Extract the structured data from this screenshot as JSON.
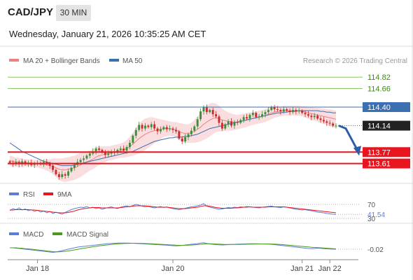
{
  "header": {
    "symbol": "CAD/JPY",
    "timeframe": "30 MIN",
    "timestamp": "Wednesday, January 21, 2026 10:35:25 AM CET"
  },
  "colors": {
    "candle_up": "#3a8f3a",
    "candle_down": "#cc2a2a",
    "bollinger_fill": "#f9d4d6",
    "ma20": "#f08080",
    "ma50": "#3a6fb0",
    "resistance_green": "#8ec86a",
    "pivot_blue": "#3a6fb0",
    "support_red": "#e8141e",
    "last_price_box": "#222222",
    "arrow": "#2a5ea8",
    "rsi": "#5b7fd8",
    "rsi_ma": "#e8141e",
    "macd": "#5b7fd8",
    "macd_signal": "#4a9a1e"
  },
  "chart_data": [
    {
      "type": "candlestick",
      "legend": [
        {
          "name": "MA 20 + Bollinger Bands",
          "color": "#f08080"
        },
        {
          "name": "MA 50",
          "color": "#3a6fb0"
        }
      ],
      "legend_placement": "top-left",
      "credit": "Research © 2026 Trading Central",
      "ylim": [
        113.4,
        114.92
      ],
      "x_ticks": [
        "Jan 18",
        "Jan 20",
        "Jan 21",
        "Jan 22"
      ],
      "last_price": 114.14,
      "levels": [
        {
          "value": 114.82,
          "label": "114.82",
          "kind": "resistance"
        },
        {
          "value": 114.66,
          "label": "114.66",
          "kind": "resistance"
        },
        {
          "value": 114.4,
          "label": "114.40",
          "kind": "pivot"
        },
        {
          "value": 113.77,
          "label": "113.77",
          "kind": "support"
        },
        {
          "value": 113.61,
          "label": "113.61",
          "kind": "support"
        }
      ],
      "close": [
        113.62,
        113.6,
        113.63,
        113.6,
        113.64,
        113.6,
        113.62,
        113.59,
        113.61,
        113.62,
        113.6,
        113.63,
        113.61,
        113.58,
        113.52,
        113.46,
        113.42,
        113.46,
        113.44,
        113.5,
        113.55,
        113.59,
        113.63,
        113.66,
        113.68,
        113.72,
        113.75,
        113.78,
        113.82,
        113.8,
        113.77,
        113.73,
        113.75,
        113.78,
        113.76,
        113.8,
        113.82,
        113.79,
        113.84,
        113.9,
        114.0,
        114.08,
        114.15,
        114.1,
        114.14,
        114.12,
        114.16,
        114.1,
        114.06,
        114.09,
        114.12,
        114.09,
        114.1,
        114.08,
        114.06,
        113.96,
        113.92,
        113.98,
        114.02,
        114.07,
        114.13,
        114.23,
        114.34,
        114.4,
        114.33,
        114.36,
        114.3,
        114.27,
        114.18,
        114.1,
        114.16,
        114.2,
        114.14,
        114.19,
        114.18,
        114.22,
        114.26,
        114.24,
        114.29,
        114.32,
        114.26,
        114.27,
        114.3,
        114.33,
        114.36,
        114.4,
        114.37,
        114.36,
        114.34,
        114.37,
        114.35,
        114.33,
        114.36,
        114.34,
        114.35,
        114.32,
        114.3,
        114.28,
        114.26,
        114.28,
        114.24,
        114.22,
        114.2,
        114.18,
        114.17,
        114.14,
        114.14
      ],
      "ma20": [
        113.65,
        113.64,
        113.63,
        113.63,
        113.62,
        113.62,
        113.62,
        113.62,
        113.61,
        113.61,
        113.6,
        113.6,
        113.59,
        113.58,
        113.57,
        113.55,
        113.53,
        113.52,
        113.52,
        113.53,
        113.54,
        113.55,
        113.57,
        113.59,
        113.61,
        113.63,
        113.65,
        113.67,
        113.7,
        113.72,
        113.73,
        113.74,
        113.75,
        113.76,
        113.77,
        113.78,
        113.79,
        113.8,
        113.82,
        113.85,
        113.88,
        113.92,
        113.96,
        113.99,
        114.02,
        114.04,
        114.06,
        114.07,
        114.08,
        114.09,
        114.1,
        114.1,
        114.1,
        114.09,
        114.08,
        114.06,
        114.04,
        114.03,
        114.03,
        114.04,
        114.06,
        114.09,
        114.12,
        114.16,
        114.19,
        114.22,
        114.24,
        114.25,
        114.24,
        114.22,
        114.21,
        114.2,
        114.19,
        114.19,
        114.19,
        114.2,
        114.21,
        114.22,
        114.23,
        114.24,
        114.25,
        114.26,
        114.27,
        114.28,
        114.3,
        114.32,
        114.33,
        114.34,
        114.34,
        114.35,
        114.35,
        114.35,
        114.35,
        114.35,
        114.35,
        114.34,
        114.33,
        114.32,
        114.31,
        114.3,
        114.29,
        114.28,
        114.27,
        114.26,
        114.25,
        114.24,
        114.23
      ],
      "bb_width": [
        0.07,
        0.07,
        0.06,
        0.06,
        0.06,
        0.05,
        0.05,
        0.05,
        0.05,
        0.05,
        0.06,
        0.07,
        0.08,
        0.09,
        0.11,
        0.13,
        0.15,
        0.16,
        0.17,
        0.17,
        0.17,
        0.17,
        0.17,
        0.17,
        0.16,
        0.15,
        0.14,
        0.14,
        0.14,
        0.13,
        0.12,
        0.11,
        0.1,
        0.1,
        0.1,
        0.1,
        0.1,
        0.11,
        0.12,
        0.14,
        0.16,
        0.19,
        0.21,
        0.22,
        0.22,
        0.21,
        0.2,
        0.18,
        0.16,
        0.14,
        0.12,
        0.11,
        0.1,
        0.1,
        0.11,
        0.12,
        0.13,
        0.13,
        0.13,
        0.14,
        0.16,
        0.18,
        0.2,
        0.22,
        0.23,
        0.23,
        0.22,
        0.2,
        0.18,
        0.16,
        0.14,
        0.13,
        0.12,
        0.11,
        0.1,
        0.1,
        0.1,
        0.1,
        0.09,
        0.09,
        0.09,
        0.09,
        0.09,
        0.09,
        0.09,
        0.09,
        0.08,
        0.08,
        0.07,
        0.07,
        0.07,
        0.07,
        0.07,
        0.07,
        0.07,
        0.07,
        0.08,
        0.08,
        0.09,
        0.09,
        0.1,
        0.1,
        0.11,
        0.11,
        0.12,
        0.12,
        0.12
      ],
      "ma50": [
        113.9,
        113.87,
        113.84,
        113.81,
        113.78,
        113.76,
        113.74,
        113.72,
        113.7,
        113.68,
        113.66,
        113.64,
        113.63,
        113.62,
        113.61,
        113.6,
        113.59,
        113.58,
        113.58,
        113.58,
        113.58,
        113.59,
        113.6,
        113.61,
        113.62,
        113.63,
        113.64,
        113.65,
        113.66,
        113.67,
        113.68,
        113.69,
        113.7,
        113.71,
        113.72,
        113.73,
        113.74,
        113.75,
        113.76,
        113.77,
        113.78,
        113.8,
        113.82,
        113.84,
        113.86,
        113.88,
        113.9,
        113.92,
        113.93,
        113.94,
        113.95,
        113.96,
        113.97,
        113.97,
        113.98,
        113.98,
        113.98,
        113.99,
        113.99,
        114.0,
        114.01,
        114.02,
        114.04,
        114.06,
        114.08,
        114.1,
        114.11,
        114.12,
        114.13,
        114.14,
        114.15,
        114.16,
        114.17,
        114.18,
        114.19,
        114.2,
        114.21,
        114.22,
        114.23,
        114.24,
        114.25,
        114.26,
        114.27,
        114.28,
        114.29,
        114.3,
        114.31,
        114.32,
        114.32,
        114.33,
        114.33,
        114.34,
        114.34,
        114.34,
        114.35,
        114.35,
        114.35,
        114.35,
        114.35,
        114.35,
        114.35,
        114.34,
        114.34,
        114.33,
        114.33,
        114.32,
        114.32
      ]
    },
    {
      "type": "line",
      "legend": [
        {
          "name": "RSI",
          "color": "#5b7fd8"
        },
        {
          "name": "9MA",
          "color": "#e8141e"
        }
      ],
      "ylim": [
        20,
        80
      ],
      "levels": [
        {
          "value": 70,
          "label": "70"
        },
        {
          "value": 30,
          "label": "30"
        }
      ],
      "last_value": 41.54,
      "last_label": "41.54",
      "series": [
        {
          "values": [
            52,
            58,
            55,
            60,
            54,
            57,
            52,
            55,
            50,
            53,
            48,
            51,
            46,
            50,
            44,
            48,
            45,
            42,
            47,
            51,
            55,
            58,
            60,
            62,
            61,
            64,
            60,
            62,
            58,
            60,
            56,
            59,
            61,
            63,
            60,
            58,
            62,
            64,
            66,
            63,
            67,
            70,
            68,
            65,
            63,
            64,
            62,
            60,
            62,
            64,
            61,
            63,
            60,
            58,
            56,
            55,
            57,
            59,
            61,
            63,
            64,
            66,
            68,
            72,
            65,
            62,
            60,
            58,
            56,
            57,
            59,
            61,
            60,
            62,
            61,
            63,
            62,
            64,
            63,
            62,
            61,
            60,
            62,
            63,
            64,
            65,
            63,
            62,
            61,
            63,
            62,
            60,
            58,
            56,
            55,
            54,
            55,
            53,
            52,
            50,
            48,
            47,
            46,
            44,
            43,
            42,
            41.5
          ]
        },
        {
          "values": [
            54,
            54,
            55,
            55,
            55,
            55,
            55,
            54,
            54,
            53,
            52,
            51,
            50,
            49,
            48,
            47,
            46,
            46,
            46,
            47,
            49,
            51,
            54,
            56,
            58,
            59,
            60,
            61,
            61,
            61,
            60,
            60,
            60,
            60,
            60,
            60,
            61,
            62,
            63,
            64,
            65,
            66,
            66,
            66,
            66,
            65,
            64,
            63,
            62,
            62,
            62,
            62,
            61,
            60,
            59,
            58,
            58,
            58,
            59,
            60,
            61,
            62,
            64,
            66,
            66,
            65,
            63,
            61,
            60,
            59,
            59,
            59,
            59,
            60,
            60,
            61,
            62,
            62,
            63,
            62,
            62,
            62,
            62,
            62,
            63,
            63,
            63,
            63,
            63,
            63,
            62,
            61,
            60,
            59,
            58,
            57,
            56,
            55,
            54,
            53,
            52,
            51,
            50,
            49,
            48,
            47,
            46
          ]
        }
      ]
    },
    {
      "type": "line",
      "legend": [
        {
          "name": "MACD",
          "color": "#5b7fd8"
        },
        {
          "name": "MACD Signal",
          "color": "#4a9a1e"
        }
      ],
      "ylim": [
        -0.12,
        0.12
      ],
      "last_value": -0.02,
      "last_label": "-0.02",
      "series": [
        {
          "values": [
            0.0,
            0.0,
            -0.005,
            -0.01,
            -0.015,
            -0.02,
            -0.025,
            -0.03,
            -0.035,
            -0.04,
            -0.045,
            -0.05,
            -0.055,
            -0.06,
            -0.065,
            -0.06,
            -0.05,
            -0.04,
            -0.03,
            -0.02,
            -0.01,
            0.0,
            0.01,
            0.015,
            0.02,
            0.025,
            0.03,
            0.035,
            0.04,
            0.045,
            0.05,
            0.055,
            0.06,
            0.063,
            0.065,
            0.067,
            0.068,
            0.068,
            0.067,
            0.066,
            0.065,
            0.063,
            0.06,
            0.058,
            0.055,
            0.052,
            0.05,
            0.047,
            0.045,
            0.043,
            0.04,
            0.037,
            0.034,
            0.03,
            0.028,
            0.03,
            0.034,
            0.04,
            0.045,
            0.05,
            0.055,
            0.06,
            0.068,
            0.072,
            0.062,
            0.055,
            0.05,
            0.045,
            0.042,
            0.04,
            0.042,
            0.045,
            0.047,
            0.05,
            0.052,
            0.054,
            0.055,
            0.056,
            0.057,
            0.058,
            0.057,
            0.056,
            0.055,
            0.054,
            0.052,
            0.05,
            0.045,
            0.04,
            0.035,
            0.03,
            0.025,
            0.02,
            0.015,
            0.01,
            0.005,
            0.0,
            -0.005,
            -0.01,
            -0.012,
            -0.01,
            -0.005,
            -0.008,
            -0.012,
            -0.015,
            -0.018,
            -0.02,
            -0.02
          ]
        },
        {
          "values": [
            0.0,
            0.0,
            0.0,
            -0.005,
            -0.008,
            -0.012,
            -0.015,
            -0.02,
            -0.025,
            -0.03,
            -0.035,
            -0.04,
            -0.045,
            -0.05,
            -0.055,
            -0.058,
            -0.057,
            -0.055,
            -0.05,
            -0.045,
            -0.038,
            -0.03,
            -0.022,
            -0.014,
            -0.006,
            0.0,
            0.008,
            0.015,
            0.02,
            0.027,
            0.033,
            0.038,
            0.043,
            0.048,
            0.052,
            0.056,
            0.059,
            0.061,
            0.063,
            0.064,
            0.065,
            0.065,
            0.064,
            0.063,
            0.061,
            0.059,
            0.057,
            0.055,
            0.052,
            0.05,
            0.047,
            0.045,
            0.042,
            0.04,
            0.037,
            0.035,
            0.035,
            0.036,
            0.038,
            0.04,
            0.043,
            0.046,
            0.05,
            0.055,
            0.057,
            0.057,
            0.056,
            0.054,
            0.052,
            0.05,
            0.048,
            0.047,
            0.047,
            0.047,
            0.048,
            0.049,
            0.05,
            0.051,
            0.052,
            0.053,
            0.054,
            0.055,
            0.055,
            0.055,
            0.055,
            0.054,
            0.052,
            0.05,
            0.047,
            0.044,
            0.04,
            0.036,
            0.032,
            0.028,
            0.024,
            0.02,
            0.016,
            0.012,
            0.008,
            0.005,
            0.003,
            0.0,
            -0.003,
            -0.006,
            -0.009,
            -0.012,
            -0.015
          ]
        }
      ]
    }
  ]
}
